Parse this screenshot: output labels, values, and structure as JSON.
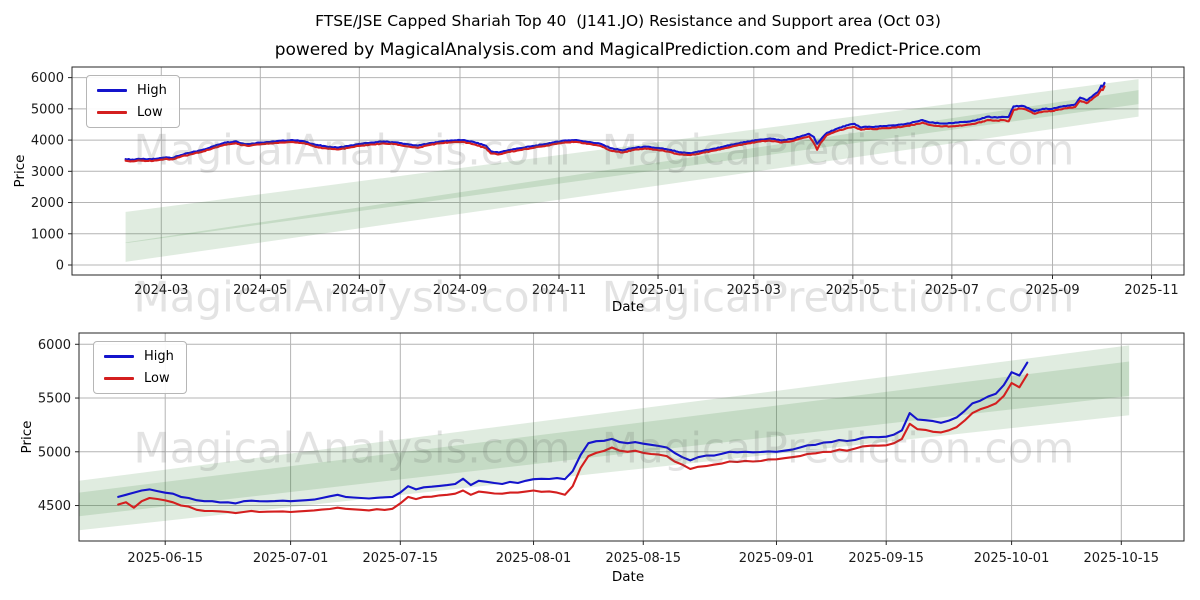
{
  "header": {
    "title": "FTSE/JSE Capped Shariah Top 40  (J141.JO) Resistance and Support area (Oct 03)",
    "subtitle": "powered by MagicalAnalysis.com and MagicalPrediction.com and Predict-Price.com"
  },
  "watermark": {
    "left_text": "MagicalAnalysis.com",
    "right_text": "MagicalPrediction.com"
  },
  "colors": {
    "high": "#1414cc",
    "low": "#d41f1f",
    "band": "#2e7d2e",
    "grid": "#b4b4b4",
    "spine": "#262626",
    "tick_text": "#1a1a1a"
  },
  "chart_data": [
    {
      "type": "line",
      "xlabel": "Date",
      "ylabel": "Price",
      "grid": true,
      "legend_position": "upper left",
      "x_domain": [
        "2024-01-06",
        "2025-11-21"
      ],
      "y_domain": [
        -320,
        6340
      ],
      "x_ticks": [
        "2024-03-01",
        "2024-05-01",
        "2024-07-01",
        "2024-09-01",
        "2024-11-01",
        "2025-01-01",
        "2025-03-01",
        "2025-05-01",
        "2025-07-01",
        "2025-09-01",
        "2025-11-01"
      ],
      "x_tick_labels": [
        "2024-03",
        "2024-05",
        "2024-07",
        "2024-09",
        "2024-11",
        "2025-01",
        "2025-03",
        "2025-05",
        "2025-07",
        "2025-09",
        "2025-11"
      ],
      "y_ticks": [
        0,
        1000,
        2000,
        3000,
        4000,
        5000,
        6000
      ],
      "noise_amp": 14,
      "dates": [
        "2024-02-08",
        "2024-02-13",
        "2024-02-16",
        "2024-02-21",
        "2024-02-27",
        "2024-03-04",
        "2024-03-08",
        "2024-03-13",
        "2024-03-19",
        "2024-03-26",
        "2024-04-02",
        "2024-04-09",
        "2024-04-16",
        "2024-04-19",
        "2024-04-24",
        "2024-04-30",
        "2024-05-07",
        "2024-05-14",
        "2024-05-21",
        "2024-05-28",
        "2024-06-04",
        "2024-06-11",
        "2024-06-18",
        "2024-06-25",
        "2024-07-02",
        "2024-07-09",
        "2024-07-16",
        "2024-07-23",
        "2024-07-30",
        "2024-08-06",
        "2024-08-13",
        "2024-08-20",
        "2024-08-27",
        "2024-09-03",
        "2024-09-10",
        "2024-09-17",
        "2024-09-20",
        "2024-09-25",
        "2024-10-01",
        "2024-10-08",
        "2024-10-15",
        "2024-10-22",
        "2024-10-29",
        "2024-11-05",
        "2024-11-12",
        "2024-11-19",
        "2024-11-26",
        "2024-12-03",
        "2024-12-10",
        "2024-12-17",
        "2024-12-24",
        "2024-12-31",
        "2025-01-07",
        "2025-01-14",
        "2025-01-21",
        "2025-01-28",
        "2025-02-04",
        "2025-02-11",
        "2025-02-18",
        "2025-02-25",
        "2025-03-04",
        "2025-03-11",
        "2025-03-18",
        "2025-03-25",
        "2025-04-01",
        "2025-04-04",
        "2025-04-07",
        "2025-04-09",
        "2025-04-11",
        "2025-04-15",
        "2025-04-22",
        "2025-04-28",
        "2025-05-02",
        "2025-05-06",
        "2025-05-09",
        "2025-05-14",
        "2025-05-20",
        "2025-05-27",
        "2025-06-03",
        "2025-06-10",
        "2025-06-13",
        "2025-06-17",
        "2025-06-24",
        "2025-07-01",
        "2025-07-08",
        "2025-07-15",
        "2025-07-23",
        "2025-07-29",
        "2025-08-01",
        "2025-08-05",
        "2025-08-08",
        "2025-08-12",
        "2025-08-15",
        "2025-08-21",
        "2025-08-26",
        "2025-09-01",
        "2025-09-05",
        "2025-09-10",
        "2025-09-15",
        "2025-09-18",
        "2025-09-22",
        "2025-09-25",
        "2025-09-29",
        "2025-10-01",
        "2025-10-02",
        "2025-10-03"
      ],
      "series": [
        {
          "name": "High",
          "color": "high",
          "values": [
            3390,
            3370,
            3400,
            3380,
            3400,
            3450,
            3430,
            3520,
            3600,
            3680,
            3800,
            3920,
            3960,
            3900,
            3870,
            3920,
            3940,
            3980,
            4000,
            3960,
            3850,
            3790,
            3760,
            3820,
            3880,
            3920,
            3950,
            3930,
            3870,
            3820,
            3900,
            3950,
            3990,
            4000,
            3930,
            3820,
            3640,
            3600,
            3680,
            3740,
            3800,
            3860,
            3930,
            3990,
            4000,
            3940,
            3890,
            3740,
            3670,
            3750,
            3790,
            3750,
            3700,
            3610,
            3580,
            3650,
            3720,
            3800,
            3880,
            3950,
            4010,
            4050,
            3990,
            4040,
            4150,
            4200,
            4100,
            3880,
            4000,
            4230,
            4380,
            4480,
            4520,
            4400,
            4430,
            4420,
            4450,
            4470,
            4520,
            4600,
            4640,
            4570,
            4530,
            4540,
            4580,
            4620,
            4750,
            4720,
            4745,
            4745,
            5080,
            5090,
            5075,
            4920,
            5000,
            5000,
            5060,
            5100,
            5140,
            5360,
            5270,
            5380,
            5540,
            5740,
            5710,
            5830
          ]
        },
        {
          "name": "Low",
          "color": "low",
          "values": [
            3340,
            3320,
            3350,
            3330,
            3350,
            3400,
            3380,
            3470,
            3540,
            3620,
            3740,
            3850,
            3900,
            3840,
            3810,
            3860,
            3890,
            3920,
            3940,
            3900,
            3780,
            3730,
            3700,
            3760,
            3820,
            3860,
            3890,
            3870,
            3800,
            3750,
            3840,
            3900,
            3930,
            3940,
            3860,
            3740,
            3570,
            3540,
            3620,
            3680,
            3740,
            3800,
            3870,
            3930,
            3940,
            3880,
            3820,
            3660,
            3600,
            3690,
            3730,
            3690,
            3630,
            3540,
            3520,
            3590,
            3660,
            3740,
            3820,
            3890,
            3950,
            3980,
            3920,
            3970,
            4080,
            4120,
            3900,
            3690,
            3900,
            4160,
            4300,
            4390,
            4420,
            4330,
            4360,
            4350,
            4380,
            4400,
            4450,
            4520,
            4560,
            4490,
            4440,
            4440,
            4470,
            4520,
            4640,
            4620,
            4640,
            4600,
            4960,
            5010,
            4990,
            4840,
            4910,
            4930,
            4980,
            5020,
            5060,
            5260,
            5180,
            5290,
            5450,
            5620,
            5600,
            5720
          ]
        }
      ],
      "bands": [
        {
          "x": [
            "2024-02-08",
            "2025-10-24"
          ],
          "lower": [
            700,
            5150
          ],
          "upper": [
            1700,
            5950
          ]
        },
        {
          "x": [
            "2024-02-08",
            "2025-10-24"
          ],
          "lower": [
            100,
            4750
          ],
          "upper": [
            720,
            5600
          ]
        }
      ]
    },
    {
      "type": "line",
      "xlabel": "Date",
      "ylabel": "Price",
      "grid": true,
      "legend_position": "upper left",
      "x_domain": [
        "2025-06-04",
        "2025-10-23"
      ],
      "y_domain": [
        4170,
        6105
      ],
      "x_ticks": [
        "2025-06-15",
        "2025-07-01",
        "2025-07-15",
        "2025-08-01",
        "2025-08-15",
        "2025-09-01",
        "2025-09-15",
        "2025-10-01",
        "2025-10-15"
      ],
      "x_tick_labels": [
        "2025-06-15",
        "2025-07-01",
        "2025-07-15",
        "2025-08-01",
        "2025-08-15",
        "2025-09-01",
        "2025-09-15",
        "2025-10-01",
        "2025-10-15"
      ],
      "y_ticks": [
        4500,
        5000,
        5500,
        6000
      ],
      "noise_amp": 7,
      "dates": [
        "2025-06-09",
        "2025-06-10",
        "2025-06-11",
        "2025-06-12",
        "2025-06-13",
        "2025-06-16",
        "2025-06-17",
        "2025-06-18",
        "2025-06-19",
        "2025-06-20",
        "2025-06-23",
        "2025-06-24",
        "2025-06-25",
        "2025-06-26",
        "2025-06-27",
        "2025-06-30",
        "2025-07-01",
        "2025-07-02",
        "2025-07-03",
        "2025-07-04",
        "2025-07-07",
        "2025-07-08",
        "2025-07-09",
        "2025-07-10",
        "2025-07-11",
        "2025-07-14",
        "2025-07-15",
        "2025-07-16",
        "2025-07-17",
        "2025-07-18",
        "2025-07-21",
        "2025-07-22",
        "2025-07-23",
        "2025-07-24",
        "2025-07-25",
        "2025-07-28",
        "2025-07-29",
        "2025-07-30",
        "2025-07-31",
        "2025-08-01",
        "2025-08-04",
        "2025-08-05",
        "2025-08-06",
        "2025-08-07",
        "2025-08-08",
        "2025-08-11",
        "2025-08-12",
        "2025-08-13",
        "2025-08-14",
        "2025-08-15",
        "2025-08-18",
        "2025-08-19",
        "2025-08-20",
        "2025-08-21",
        "2025-08-22",
        "2025-08-25",
        "2025-08-26",
        "2025-08-27",
        "2025-08-28",
        "2025-08-29",
        "2025-09-01",
        "2025-09-02",
        "2025-09-03",
        "2025-09-04",
        "2025-09-05",
        "2025-09-08",
        "2025-09-09",
        "2025-09-10",
        "2025-09-11",
        "2025-09-12",
        "2025-09-15",
        "2025-09-16",
        "2025-09-17",
        "2025-09-18",
        "2025-09-19",
        "2025-09-22",
        "2025-09-23",
        "2025-09-24",
        "2025-09-25",
        "2025-09-26",
        "2025-09-29",
        "2025-09-30",
        "2025-10-01",
        "2025-10-02",
        "2025-10-03"
      ],
      "series": [
        {
          "name": "High",
          "color": "high",
          "values": [
            4580,
            4600,
            4620,
            4640,
            4650,
            4610,
            4580,
            4570,
            4550,
            4540,
            4530,
            4520,
            4540,
            4545,
            4540,
            4545,
            4540,
            4545,
            4550,
            4555,
            4600,
            4580,
            4575,
            4570,
            4565,
            4580,
            4620,
            4680,
            4650,
            4670,
            4690,
            4700,
            4750,
            4690,
            4730,
            4700,
            4720,
            4710,
            4730,
            4745,
            4755,
            4745,
            4820,
            4970,
            5080,
            5120,
            5090,
            5080,
            5090,
            5075,
            5040,
            4990,
            4950,
            4920,
            4950,
            4980,
            5000,
            4995,
            5000,
            4995,
            5000,
            5010,
            5020,
            5040,
            5060,
            5090,
            5110,
            5100,
            5110,
            5130,
            5140,
            5160,
            5200,
            5360,
            5300,
            5270,
            5290,
            5320,
            5380,
            5450,
            5540,
            5620,
            5740,
            5710,
            5830
          ]
        },
        {
          "name": "Low",
          "color": "low",
          "values": [
            4510,
            4530,
            4480,
            4540,
            4570,
            4530,
            4500,
            4490,
            4460,
            4450,
            4440,
            4430,
            4440,
            4450,
            4440,
            4445,
            4440,
            4445,
            4450,
            4455,
            4480,
            4470,
            4465,
            4460,
            4455,
            4470,
            4520,
            4580,
            4560,
            4580,
            4600,
            4610,
            4640,
            4600,
            4630,
            4610,
            4620,
            4620,
            4630,
            4640,
            4620,
            4600,
            4680,
            4850,
            4960,
            5040,
            5010,
            5000,
            5010,
            4990,
            4960,
            4910,
            4880,
            4840,
            4860,
            4890,
            4910,
            4905,
            4915,
            4910,
            4930,
            4940,
            4950,
            4960,
            4980,
            5000,
            5020,
            5010,
            5030,
            5050,
            5060,
            5080,
            5120,
            5260,
            5210,
            5180,
            5200,
            5230,
            5290,
            5360,
            5450,
            5520,
            5640,
            5600,
            5720
          ]
        }
      ],
      "bands": [
        {
          "x": [
            "2025-06-04",
            "2025-10-16"
          ],
          "lower": [
            4400,
            5520
          ],
          "upper": [
            4730,
            5990
          ]
        },
        {
          "x": [
            "2025-06-04",
            "2025-10-16"
          ],
          "lower": [
            4270,
            5340
          ],
          "upper": [
            4620,
            5840
          ]
        }
      ]
    }
  ]
}
